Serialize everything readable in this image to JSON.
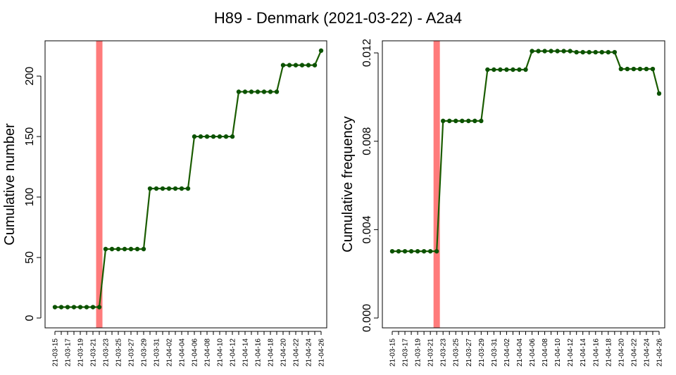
{
  "title": "H89 - Denmark (2021-03-22) - A2a4",
  "colors": {
    "line": "#1a5c00",
    "point": "#0b5200",
    "marker": "#ff7b7b"
  },
  "x_labels": [
    "21-03-15",
    "21-03-17",
    "21-03-19",
    "21-03-21",
    "21-03-23",
    "21-03-25",
    "21-03-27",
    "21-03-29",
    "21-03-31",
    "21-04-02",
    "21-04-04",
    "21-04-06",
    "21-04-08",
    "21-04-10",
    "21-04-12",
    "21-04-14",
    "21-04-16",
    "21-04-18",
    "21-04-20",
    "21-04-22",
    "21-04-24",
    "21-04-26"
  ],
  "chart_data": [
    {
      "type": "line",
      "ylabel": "Cumulative number",
      "xlabel": "",
      "ylim": [
        0,
        221
      ],
      "yticks": [
        0,
        50,
        100,
        150,
        200
      ],
      "ytick_labels": [
        "0",
        "50",
        "100",
        "150",
        "200"
      ],
      "event_date": "21-03-22",
      "x": [
        "21-03-15",
        "21-03-16",
        "21-03-17",
        "21-03-18",
        "21-03-19",
        "21-03-20",
        "21-03-21",
        "21-03-22",
        "21-03-23",
        "21-03-24",
        "21-03-25",
        "21-03-26",
        "21-03-27",
        "21-03-28",
        "21-03-29",
        "21-03-30",
        "21-03-31",
        "21-04-01",
        "21-04-02",
        "21-04-03",
        "21-04-04",
        "21-04-05",
        "21-04-06",
        "21-04-07",
        "21-04-08",
        "21-04-09",
        "21-04-10",
        "21-04-11",
        "21-04-12",
        "21-04-13",
        "21-04-14",
        "21-04-15",
        "21-04-16",
        "21-04-17",
        "21-04-18",
        "21-04-19",
        "21-04-20",
        "21-04-21",
        "21-04-22",
        "21-04-23",
        "21-04-24",
        "21-04-25",
        "21-04-26"
      ],
      "values": [
        9,
        9,
        9,
        9,
        9,
        9,
        9,
        9,
        57,
        57,
        57,
        57,
        57,
        57,
        57,
        107,
        107,
        107,
        107,
        107,
        107,
        107,
        150,
        150,
        150,
        150,
        150,
        150,
        150,
        187,
        187,
        187,
        187,
        187,
        187,
        187,
        209,
        209,
        209,
        209,
        209,
        209,
        221
      ]
    },
    {
      "type": "line",
      "ylabel": "Cumulative frequency",
      "xlabel": "",
      "ylim": [
        0,
        0.0121
      ],
      "yticks": [
        0,
        0.004,
        0.008,
        0.012
      ],
      "ytick_labels": [
        "0.000",
        "0.004",
        "0.008",
        "0.012"
      ],
      "event_date": "21-03-22",
      "x": [
        "21-03-15",
        "21-03-16",
        "21-03-17",
        "21-03-18",
        "21-03-19",
        "21-03-20",
        "21-03-21",
        "21-03-22",
        "21-03-23",
        "21-03-24",
        "21-03-25",
        "21-03-26",
        "21-03-27",
        "21-03-28",
        "21-03-29",
        "21-03-30",
        "21-03-31",
        "21-04-01",
        "21-04-02",
        "21-04-03",
        "21-04-04",
        "21-04-05",
        "21-04-06",
        "21-04-07",
        "21-04-08",
        "21-04-09",
        "21-04-10",
        "21-04-11",
        "21-04-12",
        "21-04-13",
        "21-04-14",
        "21-04-15",
        "21-04-16",
        "21-04-17",
        "21-04-18",
        "21-04-19",
        "21-04-20",
        "21-04-21",
        "21-04-22",
        "21-04-23",
        "21-04-24",
        "21-04-25",
        "21-04-26"
      ],
      "values": [
        0.00302,
        0.00302,
        0.00302,
        0.00302,
        0.00302,
        0.00302,
        0.00302,
        0.00302,
        0.00892,
        0.00892,
        0.00892,
        0.00892,
        0.00892,
        0.00892,
        0.00892,
        0.01124,
        0.01124,
        0.01124,
        0.01124,
        0.01124,
        0.01124,
        0.01124,
        0.01208,
        0.01208,
        0.01208,
        0.01208,
        0.01208,
        0.01208,
        0.01208,
        0.01203,
        0.01203,
        0.01203,
        0.01203,
        0.01203,
        0.01203,
        0.01203,
        0.01127,
        0.01127,
        0.01127,
        0.01127,
        0.01127,
        0.01127,
        0.01016
      ]
    }
  ]
}
